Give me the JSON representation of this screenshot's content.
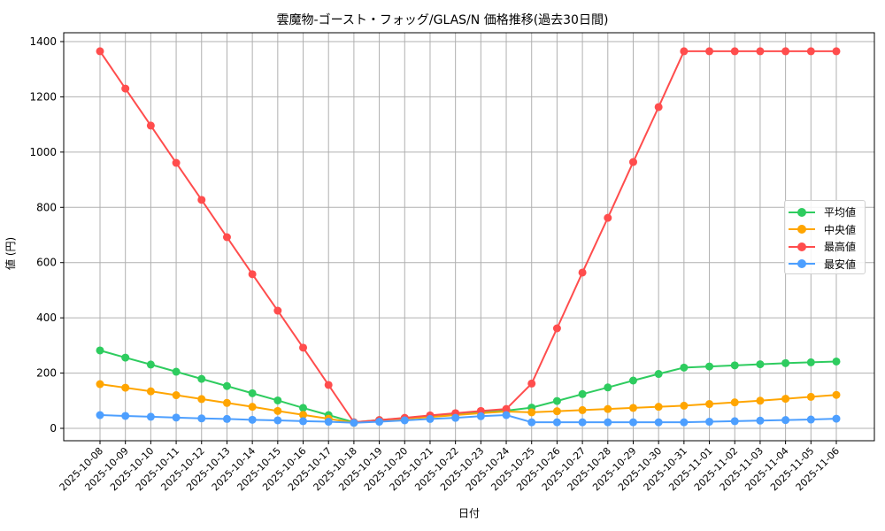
{
  "chart_data": {
    "type": "line",
    "title": "雲魔物-ゴースト・フォッグ/GLAS/N 価格推移(過去30日間)",
    "xlabel": "日付",
    "ylabel": "値 (円)",
    "ylim": [
      -45,
      1450
    ],
    "yticks": [
      0,
      200,
      400,
      600,
      800,
      1000,
      1200,
      1400
    ],
    "grid": true,
    "legend_position": "center right",
    "categories": [
      "2025-10-08",
      "2025-10-09",
      "2025-10-10",
      "2025-10-11",
      "2025-10-12",
      "2025-10-13",
      "2025-10-14",
      "2025-10-15",
      "2025-10-16",
      "2025-10-17",
      "2025-10-18",
      "2025-10-19",
      "2025-10-20",
      "2025-10-21",
      "2025-10-22",
      "2025-10-23",
      "2025-10-24",
      "2025-10-25",
      "2025-10-26",
      "2025-10-27",
      "2025-10-28",
      "2025-10-29",
      "2025-10-30",
      "2025-10-31",
      "2025-11-01",
      "2025-11-02",
      "2025-11-03",
      "2025-11-04",
      "2025-11-05",
      "2025-11-06"
    ],
    "series": [
      {
        "name": "平均値",
        "color": "#2ecc5f",
        "values": [
          282,
          256,
          231,
          205,
          179,
          153,
          127,
          101,
          74,
          48,
          22,
          30,
          37,
          43,
          51,
          58,
          64,
          75,
          99,
          124,
          148,
          173,
          197,
          220,
          224,
          228,
          232,
          236,
          239,
          242
        ]
      },
      {
        "name": "中央値",
        "color": "#ffa500",
        "values": [
          160,
          147,
          134,
          120,
          106,
          92,
          78,
          63,
          49,
          35,
          20,
          28,
          35,
          41,
          48,
          55,
          61,
          58,
          62,
          66,
          70,
          74,
          78,
          82,
          88,
          94,
          100,
          107,
          114,
          121
        ]
      },
      {
        "name": "最高値",
        "color": "#ff4d4d",
        "values": [
          1365,
          1230,
          1096,
          961,
          827,
          692,
          558,
          426,
          292,
          157,
          22,
          30,
          38,
          47,
          55,
          63,
          70,
          162,
          362,
          564,
          762,
          964,
          1163,
          1365,
          1365,
          1365,
          1365,
          1365,
          1365,
          1365
        ]
      },
      {
        "name": "最安値",
        "color": "#4d9fff",
        "values": [
          48,
          45,
          42,
          39,
          36,
          34,
          31,
          29,
          26,
          24,
          20,
          24,
          29,
          34,
          38,
          44,
          48,
          22,
          22,
          22,
          22,
          22,
          22,
          22,
          24,
          26,
          28,
          30,
          32,
          35
        ]
      }
    ]
  },
  "labels": {
    "title": "雲魔物-ゴースト・フォッグ/GLAS/N 価格推移(過去30日間)",
    "xlabel": "日付",
    "ylabel": "値 (円)",
    "legend": [
      "平均値",
      "中央値",
      "最高値",
      "最安値"
    ]
  },
  "colors": {
    "green": "#2ecc5f",
    "orange": "#ffa500",
    "red": "#ff4d4d",
    "blue": "#4d9fff",
    "grid": "#b0b0b0",
    "axis": "#000000"
  }
}
